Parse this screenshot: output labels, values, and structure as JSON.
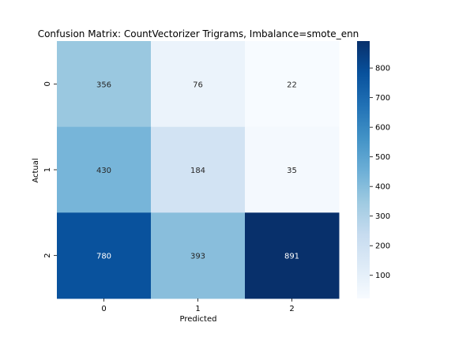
{
  "chart_data": {
    "type": "heatmap",
    "title": "Confusion Matrix: CountVectorizer Trigrams, Imbalance=smote_enn",
    "xlabel": "Predicted",
    "ylabel": "Actual",
    "x_categories": [
      "0",
      "1",
      "2"
    ],
    "y_categories": [
      "0",
      "1",
      "2"
    ],
    "values": [
      [
        356,
        76,
        22
      ],
      [
        430,
        184,
        35
      ],
      [
        780,
        393,
        891
      ]
    ],
    "colormap": "Blues",
    "color_range": [
      22,
      891
    ],
    "colorbar_ticks": [
      100,
      200,
      300,
      400,
      500,
      600,
      700,
      800
    ]
  }
}
